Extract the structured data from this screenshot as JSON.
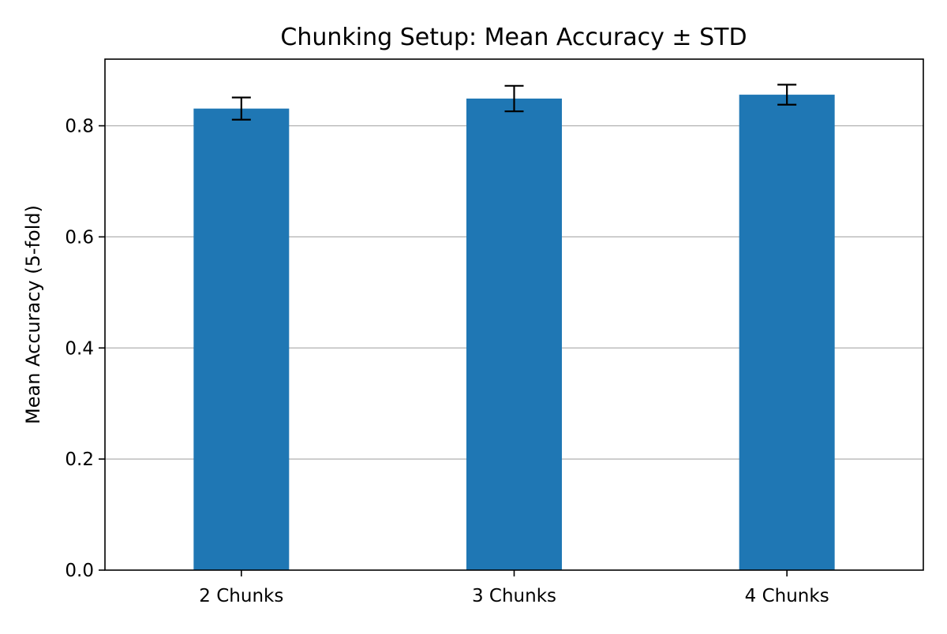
{
  "chart_data": {
    "type": "bar",
    "title": "Chunking Setup: Mean Accuracy ± STD",
    "xlabel": "",
    "ylabel": "Mean Accuracy (5-fold)",
    "categories": [
      "2 Chunks",
      "3 Chunks",
      "4 Chunks"
    ],
    "values": [
      0.831,
      0.849,
      0.856
    ],
    "errors": [
      0.02,
      0.023,
      0.018
    ],
    "ylim": [
      0,
      0.92
    ],
    "yticks": [
      0.0,
      0.2,
      0.4,
      0.6,
      0.8
    ],
    "ytick_labels": [
      "0.0",
      "0.2",
      "0.4",
      "0.6",
      "0.8"
    ],
    "grid": "horizontal",
    "legend": "none",
    "bar_color": "#1f77b4",
    "error_color": "#000000",
    "grid_color": "#b0b0b0"
  }
}
